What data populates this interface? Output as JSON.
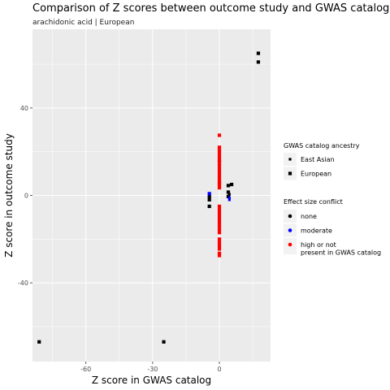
{
  "chart_data": {
    "type": "scatter",
    "title": "Comparison of Z scores between outcome study and GWAS catalog",
    "subtitle": "arachidonic acid | European",
    "xlabel": "Z score in GWAS catalog",
    "ylabel": "Z score in outcome study",
    "xlim": [
      -84,
      23
    ],
    "ylim": [
      -76,
      76
    ],
    "xticks": [
      -60,
      -30,
      0
    ],
    "xtick_labels": [
      "-60",
      "-30",
      "0"
    ],
    "yticks": [
      -40,
      0,
      40
    ],
    "ytick_labels": [
      "-40",
      "0",
      "40"
    ],
    "grid": true,
    "legend_placement": "right",
    "legends": [
      {
        "title": "GWAS catalog ancestry",
        "entries": [
          {
            "label": "East Asian",
            "shape": "small-square"
          },
          {
            "label": "European",
            "shape": "square"
          }
        ]
      },
      {
        "title": "Effect size conflict",
        "entries": [
          {
            "label": "none",
            "color": "#000000"
          },
          {
            "label": "moderate",
            "color": "#0000ff"
          },
          {
            "label": "high or not\npresent in GWAS catalog",
            "color": "#ff0000"
          }
        ]
      }
    ],
    "series": [
      {
        "name": "none",
        "color": "#000000",
        "points": [
          {
            "x": 17.5,
            "y": 65,
            "ancestry": "European"
          },
          {
            "x": 17.5,
            "y": 61,
            "ancestry": "European"
          },
          {
            "x": -81,
            "y": -67,
            "ancestry": "European"
          },
          {
            "x": -25,
            "y": -67,
            "ancestry": "European"
          },
          {
            "x": -4.5,
            "y": -0.5,
            "ancestry": "European"
          },
          {
            "x": -4.5,
            "y": -2,
            "ancestry": "European"
          },
          {
            "x": -4.5,
            "y": -5,
            "ancestry": "European"
          },
          {
            "x": 4,
            "y": 4.5,
            "ancestry": "European"
          },
          {
            "x": 5.5,
            "y": 5,
            "ancestry": "European"
          },
          {
            "x": 4,
            "y": 1.5,
            "ancestry": "European"
          },
          {
            "x": 4.5,
            "y": 0.5,
            "ancestry": "East Asian"
          },
          {
            "x": 4,
            "y": -0.5,
            "ancestry": "European"
          }
        ]
      },
      {
        "name": "moderate",
        "color": "#0000ff",
        "points": [
          {
            "x": -4.5,
            "y": 0.8,
            "ancestry": "European"
          },
          {
            "x": 4.5,
            "y": -1,
            "ancestry": "East Asian"
          },
          {
            "x": 4.5,
            "y": -2,
            "ancestry": "East Asian"
          }
        ]
      },
      {
        "name": "high or not present in GWAS catalog",
        "color": "#ff0000",
        "points": [
          {
            "x": 0,
            "y": 27.5,
            "ancestry": "European"
          },
          {
            "x": 0,
            "y": 22,
            "ancestry": "European"
          },
          {
            "x": 0,
            "y": 20.5,
            "ancestry": "European"
          },
          {
            "x": 0,
            "y": 19,
            "ancestry": "European"
          },
          {
            "x": 0,
            "y": 17.5,
            "ancestry": "European"
          },
          {
            "x": 0,
            "y": 16,
            "ancestry": "European"
          },
          {
            "x": 0,
            "y": 15.5,
            "ancestry": "European"
          },
          {
            "x": 0,
            "y": 14,
            "ancestry": "European"
          },
          {
            "x": 0,
            "y": 12.5,
            "ancestry": "European"
          },
          {
            "x": 0,
            "y": 11,
            "ancestry": "European"
          },
          {
            "x": 0,
            "y": 9.5,
            "ancestry": "European"
          },
          {
            "x": 0,
            "y": 8,
            "ancestry": "European"
          },
          {
            "x": 0,
            "y": 6.5,
            "ancestry": "European"
          },
          {
            "x": 0,
            "y": 5,
            "ancestry": "European"
          },
          {
            "x": 0,
            "y": 3.5,
            "ancestry": "European"
          },
          {
            "x": 0,
            "y": 5.5,
            "ancestry": "European"
          },
          {
            "x": 0,
            "y": -5,
            "ancestry": "European"
          },
          {
            "x": 0,
            "y": -6.5,
            "ancestry": "European"
          },
          {
            "x": 0,
            "y": -8,
            "ancestry": "European"
          },
          {
            "x": 0,
            "y": -9.5,
            "ancestry": "European"
          },
          {
            "x": 0,
            "y": -11,
            "ancestry": "European"
          },
          {
            "x": 0,
            "y": -12.5,
            "ancestry": "European"
          },
          {
            "x": 0,
            "y": -14,
            "ancestry": "European"
          },
          {
            "x": 0,
            "y": -15.5,
            "ancestry": "European"
          },
          {
            "x": 0,
            "y": -17,
            "ancestry": "European"
          },
          {
            "x": 0,
            "y": -20,
            "ancestry": "European"
          },
          {
            "x": 0,
            "y": -21.5,
            "ancestry": "European"
          },
          {
            "x": 0,
            "y": -23,
            "ancestry": "European"
          },
          {
            "x": 0,
            "y": -24.5,
            "ancestry": "European"
          },
          {
            "x": 0,
            "y": -26.5,
            "ancestry": "European"
          },
          {
            "x": 0,
            "y": -27.5,
            "ancestry": "European"
          }
        ]
      }
    ]
  }
}
